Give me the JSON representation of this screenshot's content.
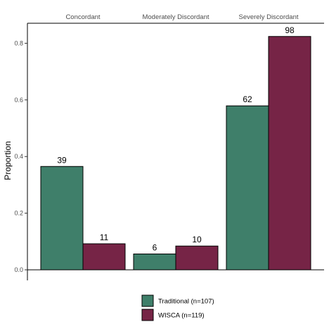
{
  "chart_data": {
    "type": "bar",
    "categories": [
      "Concordant",
      "Moderately Discordant",
      "Severely Discordant"
    ],
    "series": [
      {
        "name": "Traditional (n=107)",
        "color": "#3f7f6a",
        "values": [
          0.365,
          0.056,
          0.579
        ],
        "counts": [
          "39",
          "6",
          "62"
        ]
      },
      {
        "name": "WISCA (n=119)",
        "color": "#762446",
        "values": [
          0.092,
          0.084,
          0.824
        ],
        "counts": [
          "11",
          "10",
          "98"
        ]
      }
    ],
    "ylabel": "Proportion",
    "xlabel": "",
    "ylim": [
      0,
      0.84
    ],
    "yticks": [
      "0.0",
      "0.2",
      "0.4",
      "0.6",
      "0.8"
    ],
    "ytick_values": [
      0,
      0.2,
      0.4,
      0.6,
      0.8
    ],
    "legend_position": "bottom",
    "grid": false
  }
}
